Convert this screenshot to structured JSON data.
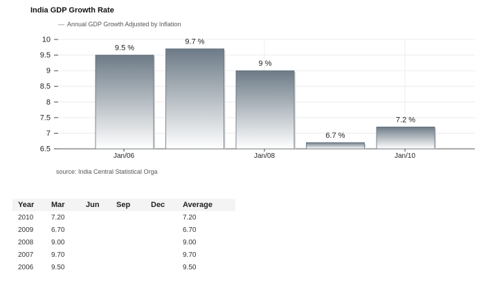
{
  "chart_data": {
    "type": "bar",
    "title": "India GDP Growth Rate",
    "legend": "Annual GDP Growth Adjusted by Inflation",
    "x_tick_labels": [
      {
        "label": "Jan/06",
        "category_index": 0
      },
      {
        "label": "Jan/08",
        "category_index": 2
      },
      {
        "label": "Jan/10",
        "category_index": 4
      }
    ],
    "categories": [
      "2006",
      "2007",
      "2008",
      "2009",
      "2010"
    ],
    "values": [
      9.5,
      9.7,
      9.0,
      6.7,
      7.2
    ],
    "value_labels": [
      "9.5 %",
      "9.7 %",
      "9 %",
      "6.7 %",
      "7.2 %"
    ],
    "yticks": [
      "10",
      "9.5",
      "9",
      "8.5",
      "8",
      "7.5",
      "7",
      "6.5"
    ],
    "ylim": [
      6.5,
      10
    ],
    "grid": true,
    "bar_color_top": "#6d7b87",
    "bar_color_bottom": "#ffffff"
  },
  "source": "source: India Central Statistical Orga",
  "table": {
    "headers": [
      "Year",
      "Mar",
      "Jun",
      "Sep",
      "Dec",
      "Average"
    ],
    "rows": [
      [
        "2010",
        "7.20",
        "",
        "",
        "",
        "7.20"
      ],
      [
        "2009",
        "6.70",
        "",
        "",
        "",
        "6.70"
      ],
      [
        "2008",
        "9.00",
        "",
        "",
        "",
        "9.00"
      ],
      [
        "2007",
        "9.70",
        "",
        "",
        "",
        "9.70"
      ],
      [
        "2006",
        "9.50",
        "",
        "",
        "",
        "9.50"
      ]
    ]
  }
}
